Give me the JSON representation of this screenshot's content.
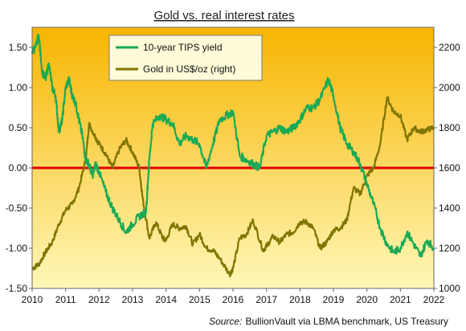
{
  "chart_data": {
    "type": "line",
    "title": "Gold vs. real interest rates",
    "source_label": "Source:",
    "source_text": "BullionVault via LBMA benchmark, US Treasury",
    "x_ticks": [
      "2010",
      "2011",
      "2012",
      "2013",
      "2014",
      "2015",
      "2016",
      "2017",
      "2018",
      "2019",
      "2020",
      "2021",
      "2022"
    ],
    "xlim": [
      2010,
      2022
    ],
    "left_axis": {
      "ylim": [
        -1.5,
        1.75
      ],
      "ticks": [
        "-1.50",
        "-1.00",
        "-0.50",
        "0.00",
        "0.50",
        "1.00",
        "1.50"
      ],
      "tick_values": [
        -1.5,
        -1.0,
        -0.5,
        0.0,
        0.5,
        1.0,
        1.5
      ]
    },
    "right_axis": {
      "ylim": [
        1000,
        2300
      ],
      "ticks": [
        "1000",
        "1200",
        "1400",
        "1600",
        "1800",
        "2000",
        "2200"
      ],
      "tick_values": [
        1000,
        1200,
        1400,
        1600,
        1800,
        2000,
        2200
      ]
    },
    "zero_line": {
      "value": 0.0,
      "color": "#e00000"
    },
    "background_gradient": [
      "#f7b500",
      "#fff7b8"
    ],
    "series": [
      {
        "name": "10-year TIPS yield",
        "axis": "left",
        "color": "#1aaa55",
        "x": [
          2010.0,
          2010.1,
          2010.2,
          2010.3,
          2010.4,
          2010.5,
          2010.6,
          2010.7,
          2010.8,
          2010.9,
          2011.0,
          2011.1,
          2011.2,
          2011.3,
          2011.4,
          2011.5,
          2011.6,
          2011.7,
          2011.8,
          2011.9,
          2012.0,
          2012.2,
          2012.4,
          2012.6,
          2012.8,
          2013.0,
          2013.2,
          2013.4,
          2013.5,
          2013.6,
          2013.8,
          2014.0,
          2014.2,
          2014.4,
          2014.6,
          2014.8,
          2015.0,
          2015.2,
          2015.4,
          2015.6,
          2015.8,
          2016.0,
          2016.2,
          2016.4,
          2016.6,
          2016.8,
          2017.0,
          2017.2,
          2017.4,
          2017.6,
          2017.8,
          2018.0,
          2018.2,
          2018.4,
          2018.6,
          2018.85,
          2019.0,
          2019.2,
          2019.4,
          2019.6,
          2019.8,
          2020.0,
          2020.2,
          2020.4,
          2020.6,
          2020.8,
          2021.0,
          2021.2,
          2021.4,
          2021.6,
          2021.8,
          2022.0
        ],
        "values": [
          1.45,
          1.5,
          1.65,
          1.2,
          1.1,
          1.3,
          1.0,
          0.9,
          0.45,
          0.6,
          1.0,
          1.1,
          0.9,
          0.8,
          0.6,
          0.4,
          0.1,
          0.05,
          -0.1,
          0.05,
          -0.05,
          -0.3,
          -0.5,
          -0.65,
          -0.8,
          -0.7,
          -0.6,
          -0.55,
          0.1,
          0.55,
          0.65,
          0.6,
          0.55,
          0.3,
          0.4,
          0.35,
          0.3,
          0.0,
          0.3,
          0.6,
          0.65,
          0.7,
          0.15,
          0.1,
          0.05,
          0.0,
          0.4,
          0.45,
          0.5,
          0.45,
          0.5,
          0.6,
          0.75,
          0.75,
          0.85,
          1.1,
          0.9,
          0.5,
          0.3,
          0.2,
          0.05,
          -0.2,
          -0.45,
          -0.75,
          -0.95,
          -1.05,
          -1.0,
          -0.8,
          -0.95,
          -1.1,
          -0.9,
          -1.0
        ],
        "note": "daily-like noise added in renderer"
      },
      {
        "name": "Gold in US$/oz (right)",
        "axis": "right",
        "color": "#807500",
        "x": [
          2010.0,
          2010.2,
          2010.4,
          2010.6,
          2010.8,
          2011.0,
          2011.2,
          2011.4,
          2011.6,
          2011.7,
          2011.9,
          2012.0,
          2012.2,
          2012.4,
          2012.6,
          2012.8,
          2013.0,
          2013.2,
          2013.3,
          2013.5,
          2013.7,
          2013.9,
          2014.0,
          2014.2,
          2014.4,
          2014.6,
          2014.8,
          2015.0,
          2015.2,
          2015.4,
          2015.6,
          2015.9,
          2016.0,
          2016.2,
          2016.4,
          2016.6,
          2016.9,
          2017.0,
          2017.2,
          2017.4,
          2017.6,
          2017.8,
          2018.0,
          2018.2,
          2018.4,
          2018.6,
          2018.8,
          2019.0,
          2019.2,
          2019.4,
          2019.6,
          2019.8,
          2020.0,
          2020.2,
          2020.4,
          2020.6,
          2020.8,
          2021.0,
          2021.2,
          2021.4,
          2021.6,
          2021.8,
          2022.0
        ],
        "values": [
          1100,
          1120,
          1180,
          1230,
          1320,
          1390,
          1420,
          1500,
          1640,
          1820,
          1750,
          1720,
          1670,
          1600,
          1690,
          1740,
          1680,
          1600,
          1450,
          1250,
          1330,
          1250,
          1240,
          1320,
          1300,
          1310,
          1220,
          1270,
          1200,
          1190,
          1150,
          1070,
          1100,
          1250,
          1270,
          1340,
          1190,
          1210,
          1260,
          1230,
          1270,
          1280,
          1330,
          1330,
          1300,
          1200,
          1230,
          1290,
          1300,
          1340,
          1500,
          1470,
          1560,
          1600,
          1720,
          1950,
          1880,
          1860,
          1740,
          1800,
          1780,
          1790,
          1800
        ]
      }
    ],
    "legend": {
      "position": "top-left-center"
    }
  }
}
